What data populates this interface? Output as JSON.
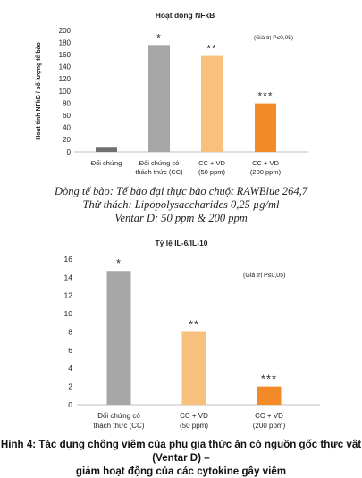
{
  "chart_data": [
    {
      "type": "bar",
      "title": "Hoạt động NFkB",
      "ylabel": "Hoạt tính NFkB / số lượng tế bào",
      "annotation": "(Giá trị P≤0,05)",
      "categories": [
        [
          "Đối chứng"
        ],
        [
          "Đối chứng có",
          "thách thức (CC)"
        ],
        [
          "CC + VD",
          "(50 ppm)"
        ],
        [
          "CC + VD",
          "(200 ppm)"
        ]
      ],
      "values": [
        7,
        176,
        158,
        80
      ],
      "significance": [
        "",
        "*",
        "**",
        "***"
      ],
      "colors": [
        "#6f6f6f",
        "#a6a6a6",
        "#f8c07d",
        "#f28a27"
      ],
      "ylim": [
        0,
        200
      ],
      "yticks": [
        0,
        20,
        40,
        60,
        80,
        100,
        120,
        140,
        160,
        180,
        200
      ]
    },
    {
      "type": "bar",
      "title": "Tỷ lệ IL-6/IL-10",
      "ylabel": "",
      "annotation": "(Giá trị P≤0,05)",
      "categories": [
        [
          "Đối chứng có",
          "thách thức (CC)"
        ],
        [
          "CC + VD",
          "(50 ppm)"
        ],
        [
          "CC + VD",
          "(200 ppm)"
        ]
      ],
      "values": [
        14.7,
        8.0,
        2.0
      ],
      "significance": [
        "*",
        "**",
        "***"
      ],
      "colors": [
        "#a6a6a6",
        "#f8c07d",
        "#f28a27"
      ],
      "ylim": [
        0,
        16
      ],
      "yticks": [
        0,
        2,
        4,
        6,
        8,
        10,
        12,
        14,
        16
      ]
    }
  ],
  "caption_lines": [
    "Dòng tế bào: Tế bào đại thực bào chuột RAWBlue 264,7",
    "Thử thách: Lipopolysaccharides 0,25 µg/ml",
    "Ventar D: 50 ppm & 200 ppm"
  ],
  "figure_caption": [
    "Hình 4: Tác dụng chống viêm của phụ gia thức ăn có nguồn gốc thực vật (Ventar D) –",
    "giảm hoạt động của các cytokine gây viêm"
  ]
}
